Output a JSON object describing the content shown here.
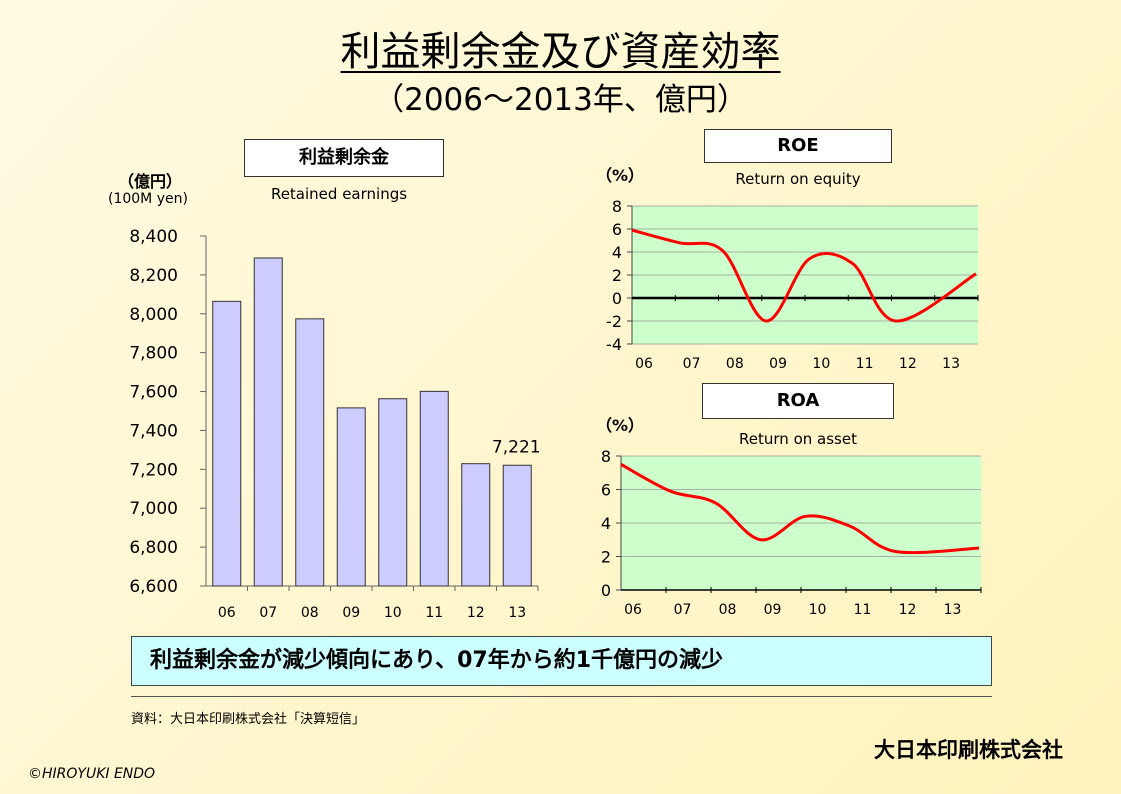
{
  "title": "利益剰余金及び資産効率",
  "subtitle": "（2006～2013年、億円）",
  "conclusion": "利益剰余金が減少傾向にあり、07年から約1千億円の減少",
  "source": "資料：大日本印刷株式会社「決算短信」",
  "company": "大日本印刷株式会社",
  "copyright": "©HIROYUKI  ENDO",
  "colors": {
    "bar": "#ccccff",
    "roe_line": "#ff0000",
    "plot_bg": "#ccffcc"
  },
  "chart_data": [
    {
      "type": "bar",
      "title": "利益剰余金",
      "subtitle": "Retained earnings",
      "ylabel": "（億円）",
      "ylabel_en": "(100M yen)",
      "categories": [
        "06",
        "07",
        "08",
        "09",
        "10",
        "11",
        "12",
        "13"
      ],
      "values": [
        8064,
        8287,
        7974,
        7516,
        7563,
        7601,
        7229,
        7221
      ],
      "ylim": [
        6600,
        8400
      ],
      "yticks": [
        6600,
        6800,
        7000,
        7200,
        7400,
        7600,
        7800,
        8000,
        8200,
        8400
      ],
      "ytick_labels": [
        "6,600",
        "6,800",
        "7,000",
        "7,200",
        "7,400",
        "7,600",
        "7,800",
        "8,000",
        "8,200",
        "8,400"
      ],
      "data_label": "7,221",
      "grid": false
    },
    {
      "type": "line",
      "title": "ROE",
      "subtitle": "Return on equity",
      "ylabel": "（%）",
      "categories": [
        "06",
        "07",
        "08",
        "09",
        "10",
        "11",
        "12",
        "13"
      ],
      "values": [
        5.9,
        4.8,
        4.1,
        -2.0,
        3.4,
        3.0,
        -2.0,
        2.1
      ],
      "ylim": [
        -4,
        8
      ],
      "yticks": [
        -4,
        -2,
        0,
        2,
        4,
        6,
        8
      ],
      "grid": true
    },
    {
      "type": "line",
      "title": "ROA",
      "subtitle": "Return on asset",
      "ylabel": "（%）",
      "categories": [
        "06",
        "07",
        "08",
        "09",
        "10",
        "11",
        "12",
        "13"
      ],
      "values": [
        7.5,
        5.9,
        5.2,
        3.0,
        4.4,
        3.8,
        2.3,
        2.5
      ],
      "ylim": [
        0,
        8
      ],
      "yticks": [
        0,
        2,
        4,
        6,
        8
      ],
      "grid": true
    }
  ]
}
